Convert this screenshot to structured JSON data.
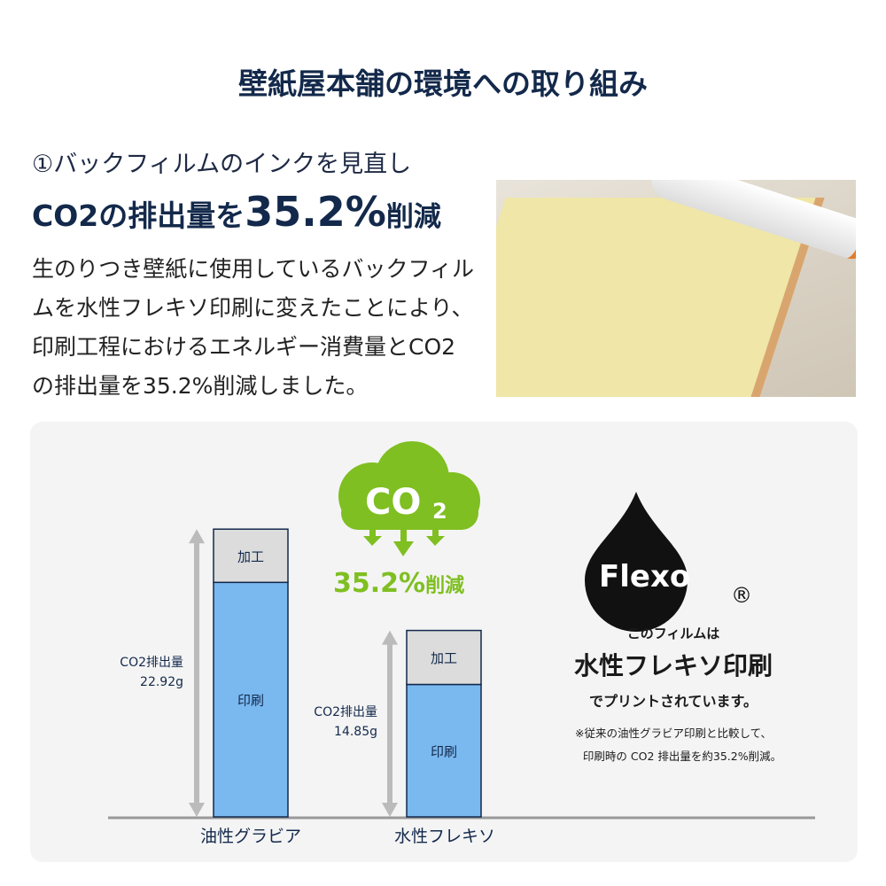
{
  "title": "壁紙屋本舗の環境への取り組み",
  "section": {
    "subtitle": "①バックフィルムのインクを見直し",
    "headline_prefix": "CO2の排出量を",
    "headline_value": "35.2%",
    "headline_suffix": "削減",
    "description": "生のりつき壁紙に使用しているバックフィルムを水性フレキソ印刷に変えたことにより、印刷工程におけるエネルギー消費量とCO2の排出量を35.2%削減しました。"
  },
  "badge": {
    "cloud_text": "CO",
    "cloud_sub": "2",
    "reduction": "35.2%",
    "reduction_suffix": "削減",
    "color": "#7fbf21"
  },
  "flexo": {
    "logo_text": "Flexo",
    "registered": "®",
    "line1": "このフィルムは",
    "line2": "水性フレキソ印刷",
    "line3": "でプリントされています。",
    "note1": "※従来の油性グラビア印刷と比較して、",
    "note2": "印刷時の CO2 排出量を約35.2%削減。"
  },
  "chart_data": {
    "type": "bar",
    "stacked": true,
    "categories": [
      "油性グラビア",
      "水性フレキソ"
    ],
    "series": [
      {
        "name": "印刷",
        "values": [
          18.68,
          10.55
        ],
        "color": "#7ab8f0"
      },
      {
        "name": "加工",
        "values": [
          4.24,
          4.3
        ],
        "color": "#dcdcdc"
      }
    ],
    "totals": [
      22.92,
      14.85
    ],
    "total_labels": [
      {
        "line1": "CO2排出量",
        "line2": "22.92g"
      },
      {
        "line1": "CO2排出量",
        "line2": "14.85g"
      }
    ],
    "unit": "g",
    "ylim": [
      0,
      23
    ],
    "grid": false
  }
}
